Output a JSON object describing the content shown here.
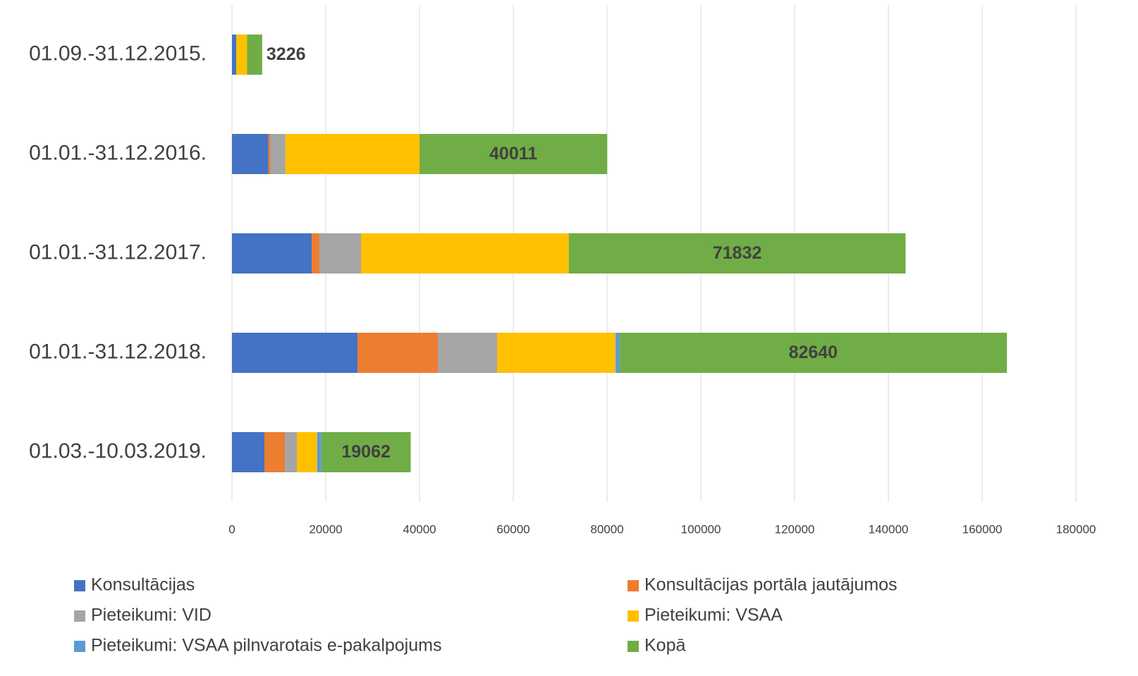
{
  "chart_data": {
    "type": "stacked_barh",
    "categories": [
      "01.09.-31.12.2015.",
      "01.01.-31.12.2016.",
      "01.01.-31.12.2017.",
      "01.01.-31.12.2018.",
      "01.03.-10.03.2019."
    ],
    "series": [
      {
        "name": "Konsultācijas",
        "color": "#4472c4",
        "values": [
          900,
          7800,
          17000,
          26770,
          6920
        ]
      },
      {
        "name": "Konsultācijas portāla jautājumos",
        "color": "#ed7d31",
        "values": [
          0,
          400,
          1650,
          17150,
          4360
        ]
      },
      {
        "name": "Pieteikumi: VID",
        "color": "#a5a5a5",
        "values": [
          0,
          3200,
          8870,
          12630,
          2560
        ]
      },
      {
        "name": "Pieteikumi: VSAA",
        "color": "#ffc000",
        "values": [
          2326,
          28611,
          44312,
          25270,
          4322
        ]
      },
      {
        "name": "Pieteikumi: VSAA pilnvarotais e-pakalpojums",
        "color": "#5b9bd5",
        "values": [
          0,
          0,
          0,
          820,
          900
        ]
      },
      {
        "name": "Kopā",
        "color": "#70ad47",
        "values": [
          3226,
          40011,
          71832,
          82640,
          19062
        ],
        "show_labels": true
      }
    ],
    "xlim": [
      0,
      180000
    ],
    "xticks": [
      0,
      20000,
      40000,
      60000,
      80000,
      100000,
      120000,
      140000,
      160000,
      180000
    ],
    "grid": true,
    "legend": "bottom"
  }
}
